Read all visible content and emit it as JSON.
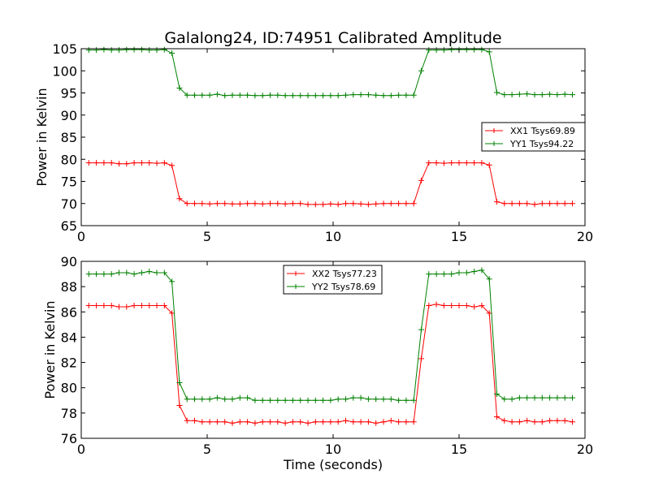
{
  "figure": {
    "title": "Galalong24, ID:74951 Calibrated Amplitude"
  },
  "chart_data": [
    {
      "type": "line",
      "title": "Galalong24, ID:74951 Calibrated Amplitude",
      "xlabel": "",
      "ylabel": "Power in Kelvin",
      "xlim": [
        0,
        20
      ],
      "ylim": [
        65,
        105
      ],
      "xticks": [
        0,
        5,
        10,
        15,
        20
      ],
      "xtick_labels": [
        "0",
        "5",
        "10",
        "15",
        "20"
      ],
      "yticks": [
        65,
        70,
        75,
        80,
        85,
        90,
        95,
        100,
        105
      ],
      "ytick_labels": [
        "65",
        "70",
        "75",
        "80",
        "85",
        "90",
        "95",
        "100",
        "105"
      ],
      "grid": false,
      "legend_position": "center-right",
      "x": [
        0.3,
        0.6,
        0.9,
        1.2,
        1.5,
        1.8,
        2.1,
        2.4,
        2.7,
        3.0,
        3.3,
        3.6,
        3.9,
        4.2,
        4.5,
        4.8,
        5.1,
        5.4,
        5.7,
        6.0,
        6.3,
        6.6,
        6.9,
        7.2,
        7.5,
        7.8,
        8.1,
        8.4,
        8.7,
        9.0,
        9.3,
        9.6,
        9.9,
        10.2,
        10.5,
        10.8,
        11.1,
        11.4,
        11.7,
        12.0,
        12.3,
        12.6,
        12.9,
        13.2,
        13.5,
        13.8,
        14.1,
        14.4,
        14.7,
        15.0,
        15.3,
        15.6,
        15.9,
        16.2,
        16.5,
        16.8,
        17.1,
        17.4,
        17.7,
        18.0,
        18.3,
        18.6,
        18.9,
        19.2,
        19.5
      ],
      "series": [
        {
          "name": "XX1 Tsys69.89",
          "color": "#ff0000",
          "values": [
            79.2,
            79.2,
            79.2,
            79.2,
            79.0,
            79.0,
            79.2,
            79.2,
            79.2,
            79.1,
            79.2,
            78.6,
            71.1,
            70.0,
            70.0,
            70.0,
            69.9,
            70.0,
            70.0,
            69.9,
            69.9,
            70.0,
            70.0,
            69.9,
            70.0,
            70.0,
            69.9,
            70.0,
            70.0,
            69.8,
            69.8,
            69.8,
            69.9,
            69.8,
            70.0,
            70.0,
            69.9,
            69.8,
            69.9,
            70.0,
            70.0,
            70.0,
            70.0,
            70.0,
            75.2,
            79.2,
            79.2,
            79.1,
            79.2,
            79.2,
            79.2,
            79.2,
            79.2,
            78.7,
            70.4,
            70.0,
            70.0,
            70.0,
            70.0,
            69.8,
            70.0,
            70.0,
            70.0,
            70.0,
            70.0
          ]
        },
        {
          "name": "YY1 Tsys94.22",
          "color": "#008000",
          "values": [
            104.7,
            104.7,
            104.8,
            104.7,
            104.7,
            104.8,
            104.8,
            104.8,
            104.7,
            104.7,
            104.8,
            104.0,
            96.1,
            94.5,
            94.5,
            94.5,
            94.5,
            94.7,
            94.4,
            94.5,
            94.5,
            94.5,
            94.4,
            94.4,
            94.5,
            94.5,
            94.4,
            94.4,
            94.4,
            94.4,
            94.4,
            94.4,
            94.4,
            94.4,
            94.5,
            94.6,
            94.6,
            94.6,
            94.5,
            94.4,
            94.4,
            94.5,
            94.5,
            94.5,
            100.0,
            104.7,
            104.7,
            104.7,
            104.8,
            104.8,
            104.8,
            104.8,
            104.8,
            104.3,
            95.1,
            94.6,
            94.6,
            94.7,
            94.8,
            94.6,
            94.6,
            94.7,
            94.6,
            94.7,
            94.6
          ]
        }
      ]
    },
    {
      "type": "line",
      "title": "",
      "xlabel": "Time (seconds)",
      "ylabel": "Power in Kelvin",
      "xlim": [
        0,
        20
      ],
      "ylim": [
        76,
        90
      ],
      "xticks": [
        0,
        5,
        10,
        15,
        20
      ],
      "xtick_labels": [
        "0",
        "5",
        "10",
        "15",
        "20"
      ],
      "yticks": [
        76,
        78,
        80,
        82,
        84,
        86,
        88,
        90
      ],
      "ytick_labels": [
        "76",
        "78",
        "80",
        "82",
        "84",
        "86",
        "88",
        "90"
      ],
      "grid": false,
      "legend_position": "top-center",
      "x": [
        0.3,
        0.6,
        0.9,
        1.2,
        1.5,
        1.8,
        2.1,
        2.4,
        2.7,
        3.0,
        3.3,
        3.6,
        3.9,
        4.2,
        4.5,
        4.8,
        5.1,
        5.4,
        5.7,
        6.0,
        6.3,
        6.6,
        6.9,
        7.2,
        7.5,
        7.8,
        8.1,
        8.4,
        8.7,
        9.0,
        9.3,
        9.6,
        9.9,
        10.2,
        10.5,
        10.8,
        11.1,
        11.4,
        11.7,
        12.0,
        12.3,
        12.6,
        12.9,
        13.2,
        13.5,
        13.8,
        14.1,
        14.4,
        14.7,
        15.0,
        15.3,
        15.6,
        15.9,
        16.2,
        16.5,
        16.8,
        17.1,
        17.4,
        17.7,
        18.0,
        18.3,
        18.6,
        18.9,
        19.2,
        19.5
      ],
      "series": [
        {
          "name": "XX2 Tsys77.23",
          "color": "#ff0000",
          "values": [
            86.5,
            86.5,
            86.5,
            86.5,
            86.4,
            86.4,
            86.5,
            86.5,
            86.5,
            86.5,
            86.5,
            85.9,
            78.6,
            77.4,
            77.4,
            77.3,
            77.3,
            77.3,
            77.3,
            77.2,
            77.3,
            77.3,
            77.2,
            77.3,
            77.3,
            77.3,
            77.2,
            77.3,
            77.3,
            77.2,
            77.3,
            77.3,
            77.3,
            77.3,
            77.4,
            77.3,
            77.3,
            77.3,
            77.2,
            77.3,
            77.4,
            77.3,
            77.3,
            77.3,
            82.3,
            86.5,
            86.6,
            86.5,
            86.5,
            86.5,
            86.5,
            86.4,
            86.5,
            85.9,
            77.7,
            77.4,
            77.3,
            77.3,
            77.4,
            77.3,
            77.3,
            77.4,
            77.4,
            77.4,
            77.3
          ]
        },
        {
          "name": "YY2 Tsys78.69",
          "color": "#008000",
          "values": [
            89.0,
            89.0,
            89.0,
            89.0,
            89.1,
            89.1,
            89.0,
            89.1,
            89.2,
            89.1,
            89.1,
            88.4,
            80.4,
            79.1,
            79.1,
            79.1,
            79.1,
            79.2,
            79.1,
            79.1,
            79.2,
            79.2,
            79.0,
            79.0,
            79.0,
            79.0,
            79.0,
            79.0,
            79.0,
            79.0,
            79.0,
            79.0,
            79.0,
            79.1,
            79.1,
            79.2,
            79.2,
            79.1,
            79.1,
            79.1,
            79.1,
            79.0,
            79.0,
            79.0,
            84.6,
            89.0,
            89.0,
            89.0,
            89.0,
            89.1,
            89.1,
            89.2,
            89.3,
            88.6,
            79.5,
            79.1,
            79.1,
            79.2,
            79.2,
            79.2,
            79.2,
            79.2,
            79.2,
            79.2,
            79.2
          ]
        }
      ]
    }
  ]
}
